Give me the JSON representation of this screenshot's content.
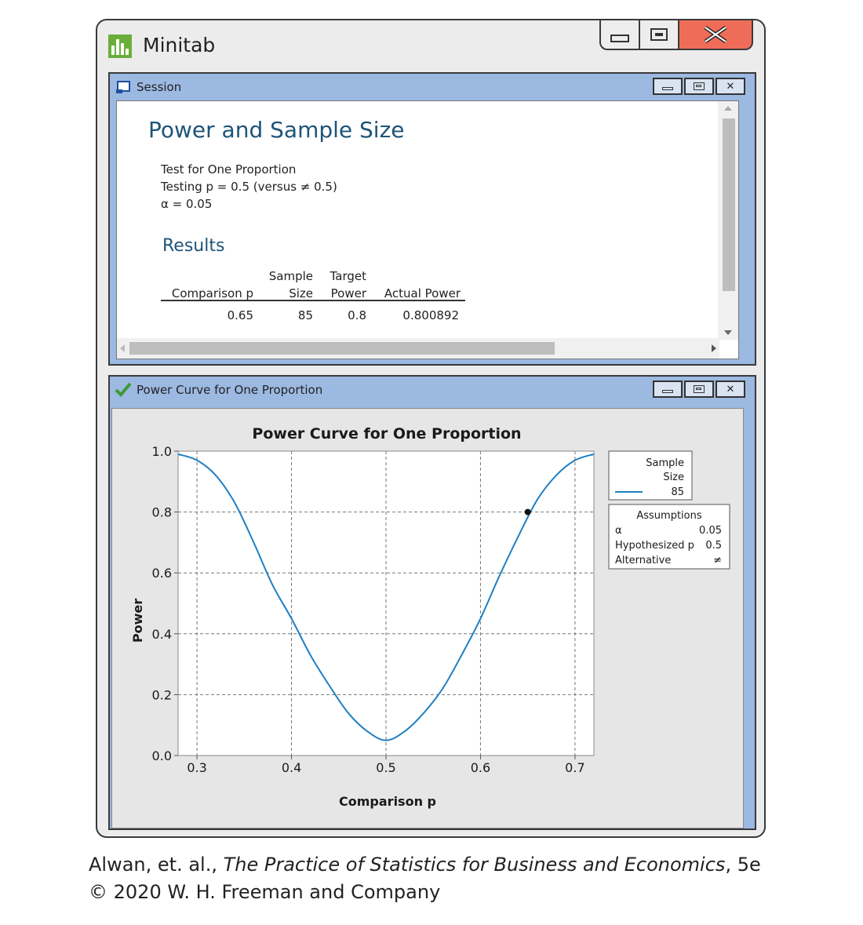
{
  "app": {
    "title": "Minitab",
    "colors": {
      "close_button": "#ef6d58",
      "child_frame": "#9cb9e2",
      "heading": "#1e5478",
      "curve": "#1f7fc3"
    }
  },
  "session": {
    "title": "Session",
    "heading": "Power and Sample Size",
    "test_name": "Test for One Proportion",
    "testing_line": "Testing p  = 0.5 (versus ≠ 0.5)",
    "alpha_line": "α = 0.05",
    "results_heading": "Results",
    "table": {
      "headers_top": [
        "",
        "Sample",
        "Target",
        ""
      ],
      "headers_bottom": [
        "Comparison p",
        "Size",
        "Power",
        "Actual Power"
      ],
      "rows": [
        [
          "0.65",
          "85",
          "0.8",
          "0.800892"
        ]
      ]
    }
  },
  "power_window": {
    "title": "Power Curve for One Proportion",
    "legend_sample": {
      "line1": "Sample",
      "line2": "Size",
      "value": "85"
    },
    "assumptions": {
      "title": "Assumptions",
      "rows": [
        {
          "label": "α",
          "value": "0.05"
        },
        {
          "label": "Hypothesized p",
          "value": "0.5"
        },
        {
          "label": "Alternative",
          "value": "≠"
        }
      ]
    }
  },
  "chart_data": {
    "type": "line",
    "title": "Power Curve for One Proportion",
    "xlabel": "Comparison p",
    "ylabel": "Power",
    "xlim": [
      0.28,
      0.72
    ],
    "ylim": [
      0,
      1.0
    ],
    "xticks": [
      "0.3",
      "0.4",
      "0.5",
      "0.6",
      "0.7"
    ],
    "yticks": [
      "0.0",
      "0.2",
      "0.4",
      "0.6",
      "0.8",
      "1.0"
    ],
    "grid": true,
    "series": [
      {
        "name": "85",
        "x": [
          0.28,
          0.3,
          0.32,
          0.34,
          0.36,
          0.38,
          0.4,
          0.42,
          0.44,
          0.46,
          0.48,
          0.5,
          0.52,
          0.54,
          0.56,
          0.58,
          0.6,
          0.62,
          0.64,
          0.66,
          0.68,
          0.7,
          0.72
        ],
        "y": [
          0.99,
          0.97,
          0.92,
          0.83,
          0.7,
          0.56,
          0.45,
          0.33,
          0.23,
          0.14,
          0.08,
          0.05,
          0.08,
          0.14,
          0.22,
          0.33,
          0.45,
          0.59,
          0.72,
          0.84,
          0.92,
          0.97,
          0.99
        ]
      }
    ],
    "highlight_point": {
      "x": 0.65,
      "y": 0.8
    }
  },
  "caption": {
    "authors": "Alwan, et. al., ",
    "book": "The Practice of Statistics for Business and Economics",
    "edition": ", 5e",
    "copyright": "© 2020 W. H. Freeman and Company"
  }
}
